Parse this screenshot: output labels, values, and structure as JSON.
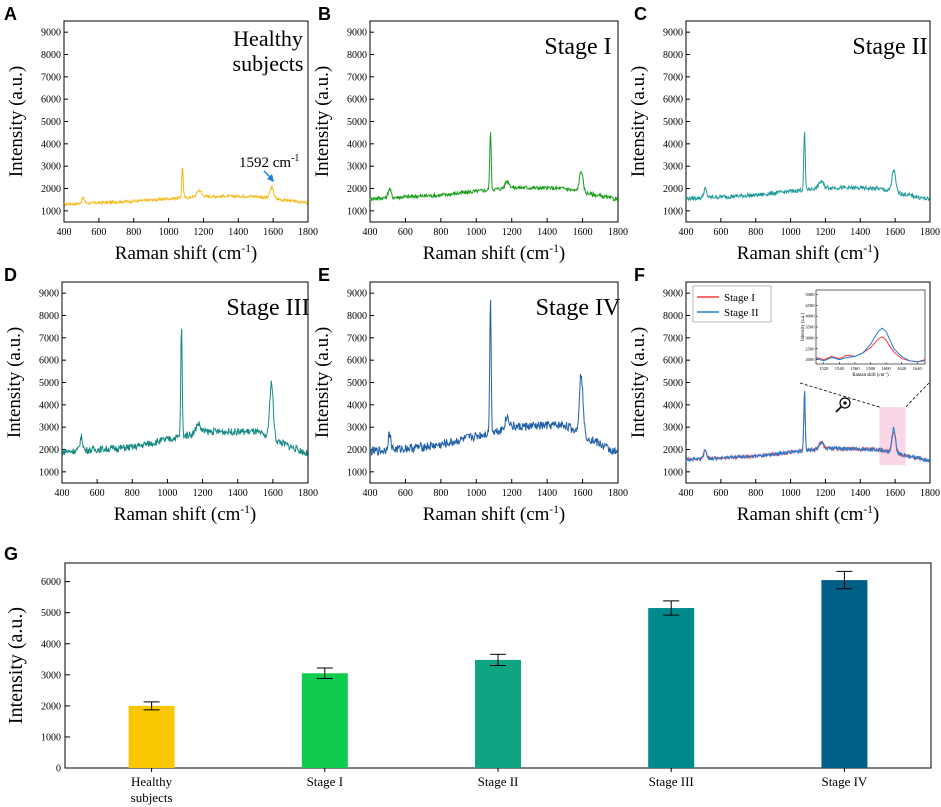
{
  "colors": {
    "healthy": "#f5b816",
    "stage1": "#1a9e1a",
    "stage2": "#1f9a9a",
    "stage3": "#178a84",
    "stage4": "#1f5fa8",
    "overlay_red": "#ff3b3b",
    "overlay_blue": "#1e7fd6",
    "bar_healthy": "#f9c702",
    "bar_stage1": "#10cc4e",
    "bar_stage2": "#10a582",
    "bar_stage3": "#008a8e",
    "bar_stage4": "#005f86",
    "highlight": "#f7cfe0"
  },
  "chart_data": [
    {
      "panel": "A",
      "type": "line",
      "title": "Healthy subjects",
      "title_lines": [
        "Healthy",
        "subjects"
      ],
      "xlabel": "Raman shift (cm",
      "xlabel_sup": "-1",
      "xlabel_end": ")",
      "ylabel": "Intensity (a.u.)",
      "xlim": [
        400,
        1800
      ],
      "ylim": [
        500,
        9500
      ],
      "xticks": [
        400,
        600,
        800,
        1000,
        1200,
        1400,
        1600,
        1800
      ],
      "yticks": [
        1000,
        2000,
        3000,
        4000,
        5000,
        6000,
        7000,
        8000,
        9000
      ],
      "color_key": "healthy",
      "series": [
        {
          "name": "Healthy subjects",
          "baseline": [
            [
              400,
              1300
            ],
            [
              800,
              1430
            ],
            [
              1200,
              1650
            ],
            [
              1500,
              1650
            ],
            [
              1800,
              1350
            ]
          ],
          "noise": 60,
          "peaks": [
            [
              510,
              250,
              8
            ],
            [
              1080,
              1400,
              4
            ],
            [
              1175,
              300,
              12
            ],
            [
              1592,
              500,
              10
            ]
          ]
        }
      ],
      "annotation": {
        "text": "1592 cm",
        "sup": "-1"
      }
    },
    {
      "panel": "B",
      "type": "line",
      "title": "Stage I",
      "xlabel": "Raman shift (cm",
      "xlabel_sup": "-1",
      "xlabel_end": ")",
      "ylabel": "Intensity (a.u.)",
      "xlim": [
        400,
        1800
      ],
      "ylim": [
        500,
        9500
      ],
      "xticks": [
        400,
        600,
        800,
        1000,
        1200,
        1400,
        1600,
        1800
      ],
      "yticks": [
        1000,
        2000,
        3000,
        4000,
        5000,
        6000,
        7000,
        8000,
        9000
      ],
      "color_key": "stage1",
      "series": [
        {
          "name": "Stage I",
          "baseline": [
            [
              400,
              1550
            ],
            [
              800,
              1700
            ],
            [
              1200,
              2050
            ],
            [
              1500,
              2000
            ],
            [
              1800,
              1500
            ]
          ],
          "noise": 90,
          "peaks": [
            [
              510,
              400,
              8
            ],
            [
              1080,
              2650,
              4
            ],
            [
              1175,
              300,
              12
            ],
            [
              1592,
              950,
              10
            ]
          ]
        }
      ]
    },
    {
      "panel": "C",
      "type": "line",
      "title": "Stage II",
      "xlabel": "Raman shift (cm",
      "xlabel_sup": "-1",
      "xlabel_end": ")",
      "ylabel": "Intensity (a.u.)",
      "xlim": [
        400,
        1800
      ],
      "ylim": [
        500,
        9500
      ],
      "xticks": [
        400,
        600,
        800,
        1000,
        1200,
        1400,
        1600,
        1800
      ],
      "yticks": [
        1000,
        2000,
        3000,
        4000,
        5000,
        6000,
        7000,
        8000,
        9000
      ],
      "color_key": "stage2",
      "series": [
        {
          "name": "Stage II",
          "baseline": [
            [
              400,
              1550
            ],
            [
              800,
              1700
            ],
            [
              1200,
              2050
            ],
            [
              1500,
              2000
            ],
            [
              1800,
              1500
            ]
          ],
          "noise": 90,
          "peaks": [
            [
              510,
              400,
              8
            ],
            [
              1080,
              2650,
              4
            ],
            [
              1175,
              300,
              12
            ],
            [
              1592,
              1000,
              10
            ]
          ]
        }
      ]
    },
    {
      "panel": "D",
      "type": "line",
      "title": "Stage III",
      "xlabel": "Raman shift (cm",
      "xlabel_sup": "-1",
      "xlabel_end": ")",
      "ylabel": "Intensity (a.u.)",
      "xlim": [
        400,
        1800
      ],
      "ylim": [
        500,
        9500
      ],
      "xticks": [
        400,
        600,
        800,
        1000,
        1200,
        1400,
        1600,
        1800
      ],
      "yticks": [
        1000,
        2000,
        3000,
        4000,
        5000,
        6000,
        7000,
        8000,
        9000
      ],
      "color_key": "stage3",
      "series": [
        {
          "name": "Stage III",
          "baseline": [
            [
              400,
              1900
            ],
            [
              800,
              2100
            ],
            [
              1200,
              2800
            ],
            [
              1500,
              2800
            ],
            [
              1800,
              1800
            ]
          ],
          "noise": 160,
          "peaks": [
            [
              510,
              600,
              8
            ],
            [
              1080,
              4900,
              4
            ],
            [
              1175,
              400,
              12
            ],
            [
              1592,
              2500,
              10
            ]
          ]
        }
      ]
    },
    {
      "panel": "E",
      "type": "line",
      "title": "Stage IV",
      "xlabel": "Raman shift (cm",
      "xlabel_sup": "-1",
      "xlabel_end": ")",
      "ylabel": "Intensity (a.u.)",
      "xlim": [
        400,
        1800
      ],
      "ylim": [
        500,
        9500
      ],
      "xticks": [
        400,
        600,
        800,
        1000,
        1200,
        1400,
        1600,
        1800
      ],
      "yticks": [
        1000,
        2000,
        3000,
        4000,
        5000,
        6000,
        7000,
        8000,
        9000
      ],
      "color_key": "stage4",
      "series": [
        {
          "name": "Stage IV",
          "baseline": [
            [
              400,
              1900
            ],
            [
              800,
              2200
            ],
            [
              1200,
              3000
            ],
            [
              1500,
              3100
            ],
            [
              1800,
              1800
            ]
          ],
          "noise": 200,
          "peaks": [
            [
              510,
              700,
              8
            ],
            [
              1080,
              6000,
              4
            ],
            [
              1175,
              500,
              12
            ],
            [
              1592,
              2700,
              10
            ]
          ]
        }
      ]
    },
    {
      "panel": "F",
      "type": "line",
      "title": "",
      "xlabel": "Raman shift (cm",
      "xlabel_sup": "-1",
      "xlabel_end": ")",
      "ylabel": "Intensity (a.u.)",
      "xlim": [
        400,
        1800
      ],
      "ylim": [
        500,
        9500
      ],
      "xticks": [
        400,
        600,
        800,
        1000,
        1200,
        1400,
        1600,
        1800
      ],
      "yticks": [
        1000,
        2000,
        3000,
        4000,
        5000,
        6000,
        7000,
        8000,
        9000
      ],
      "legend": "top-left",
      "series": [
        {
          "name": "Stage I",
          "color_key": "overlay_red",
          "baseline": [
            [
              400,
              1550
            ],
            [
              800,
              1700
            ],
            [
              1200,
              2050
            ],
            [
              1500,
              2000
            ],
            [
              1800,
              1500
            ]
          ],
          "noise": 80,
          "peaks": [
            [
              510,
              400,
              8
            ],
            [
              1080,
              2650,
              4
            ],
            [
              1175,
              300,
              12
            ],
            [
              1592,
              950,
              10
            ]
          ]
        },
        {
          "name": "Stage II",
          "color_key": "overlay_blue",
          "baseline": [
            [
              400,
              1550
            ],
            [
              800,
              1700
            ],
            [
              1200,
              2050
            ],
            [
              1500,
              2000
            ],
            [
              1800,
              1500
            ]
          ],
          "noise": 80,
          "peaks": [
            [
              510,
              400,
              8
            ],
            [
              1080,
              2700,
              4
            ],
            [
              1175,
              300,
              12
            ],
            [
              1592,
              1100,
              10
            ]
          ]
        }
      ],
      "highlight_range": [
        1510,
        1660
      ],
      "inset": {
        "xlabel": "Raman shift (cm",
        "xlabel_sup": "-1",
        "xlabel_end": ")",
        "ylabel": "Intensity (a.u.)",
        "xlim": [
          1510,
          1650
        ],
        "ylim": [
          1800,
          5200
        ],
        "xticks": [
          1520,
          1540,
          1560,
          1580,
          1600,
          1620,
          1640
        ],
        "yticks": [
          2000,
          2500,
          3000,
          3500,
          4000,
          4500,
          5000
        ],
        "series": [
          {
            "name": "Stage I",
            "color_key": "overlay_red",
            "points": [
              [
                1510,
                2100
              ],
              [
                1520,
                2000
              ],
              [
                1530,
                2150
              ],
              [
                1540,
                2050
              ],
              [
                1550,
                2200
              ],
              [
                1560,
                2150
              ],
              [
                1570,
                2300
              ],
              [
                1580,
                2550
              ],
              [
                1590,
                2950
              ],
              [
                1595,
                3050
              ],
              [
                1600,
                2900
              ],
              [
                1605,
                2600
              ],
              [
                1610,
                2350
              ],
              [
                1620,
                2050
              ],
              [
                1630,
                1950
              ],
              [
                1640,
                1900
              ],
              [
                1650,
                2000
              ]
            ]
          },
          {
            "name": "Stage II",
            "color_key": "overlay_blue",
            "points": [
              [
                1510,
                2050
              ],
              [
                1520,
                1950
              ],
              [
                1530,
                2100
              ],
              [
                1540,
                2000
              ],
              [
                1550,
                2100
              ],
              [
                1560,
                2150
              ],
              [
                1570,
                2300
              ],
              [
                1580,
                2700
              ],
              [
                1590,
                3300
              ],
              [
                1595,
                3450
              ],
              [
                1600,
                3300
              ],
              [
                1605,
                2900
              ],
              [
                1610,
                2500
              ],
              [
                1620,
                2150
              ],
              [
                1630,
                1950
              ],
              [
                1640,
                1900
              ],
              [
                1650,
                1950
              ]
            ]
          }
        ]
      }
    },
    {
      "panel": "G",
      "type": "bar",
      "categories": [
        "Healthy subjects",
        "Stage I",
        "Stage II",
        "Stage III",
        "Stage IV"
      ],
      "category_lines": [
        [
          "Healthy",
          "subjects"
        ],
        [
          "Stage I"
        ],
        [
          "Stage II"
        ],
        [
          "Stage III"
        ],
        [
          "Stage IV"
        ]
      ],
      "values": [
        2000,
        3050,
        3480,
        5150,
        6050
      ],
      "errors": [
        130,
        170,
        180,
        230,
        280
      ],
      "color_keys": [
        "bar_healthy",
        "bar_stage1",
        "bar_stage2",
        "bar_stage3",
        "bar_stage4"
      ],
      "xlabel": "",
      "ylabel": "Intensity (a.u.)",
      "ylim": [
        0,
        6600
      ],
      "yticks": [
        0,
        1000,
        2000,
        3000,
        4000,
        5000,
        6000
      ]
    }
  ]
}
